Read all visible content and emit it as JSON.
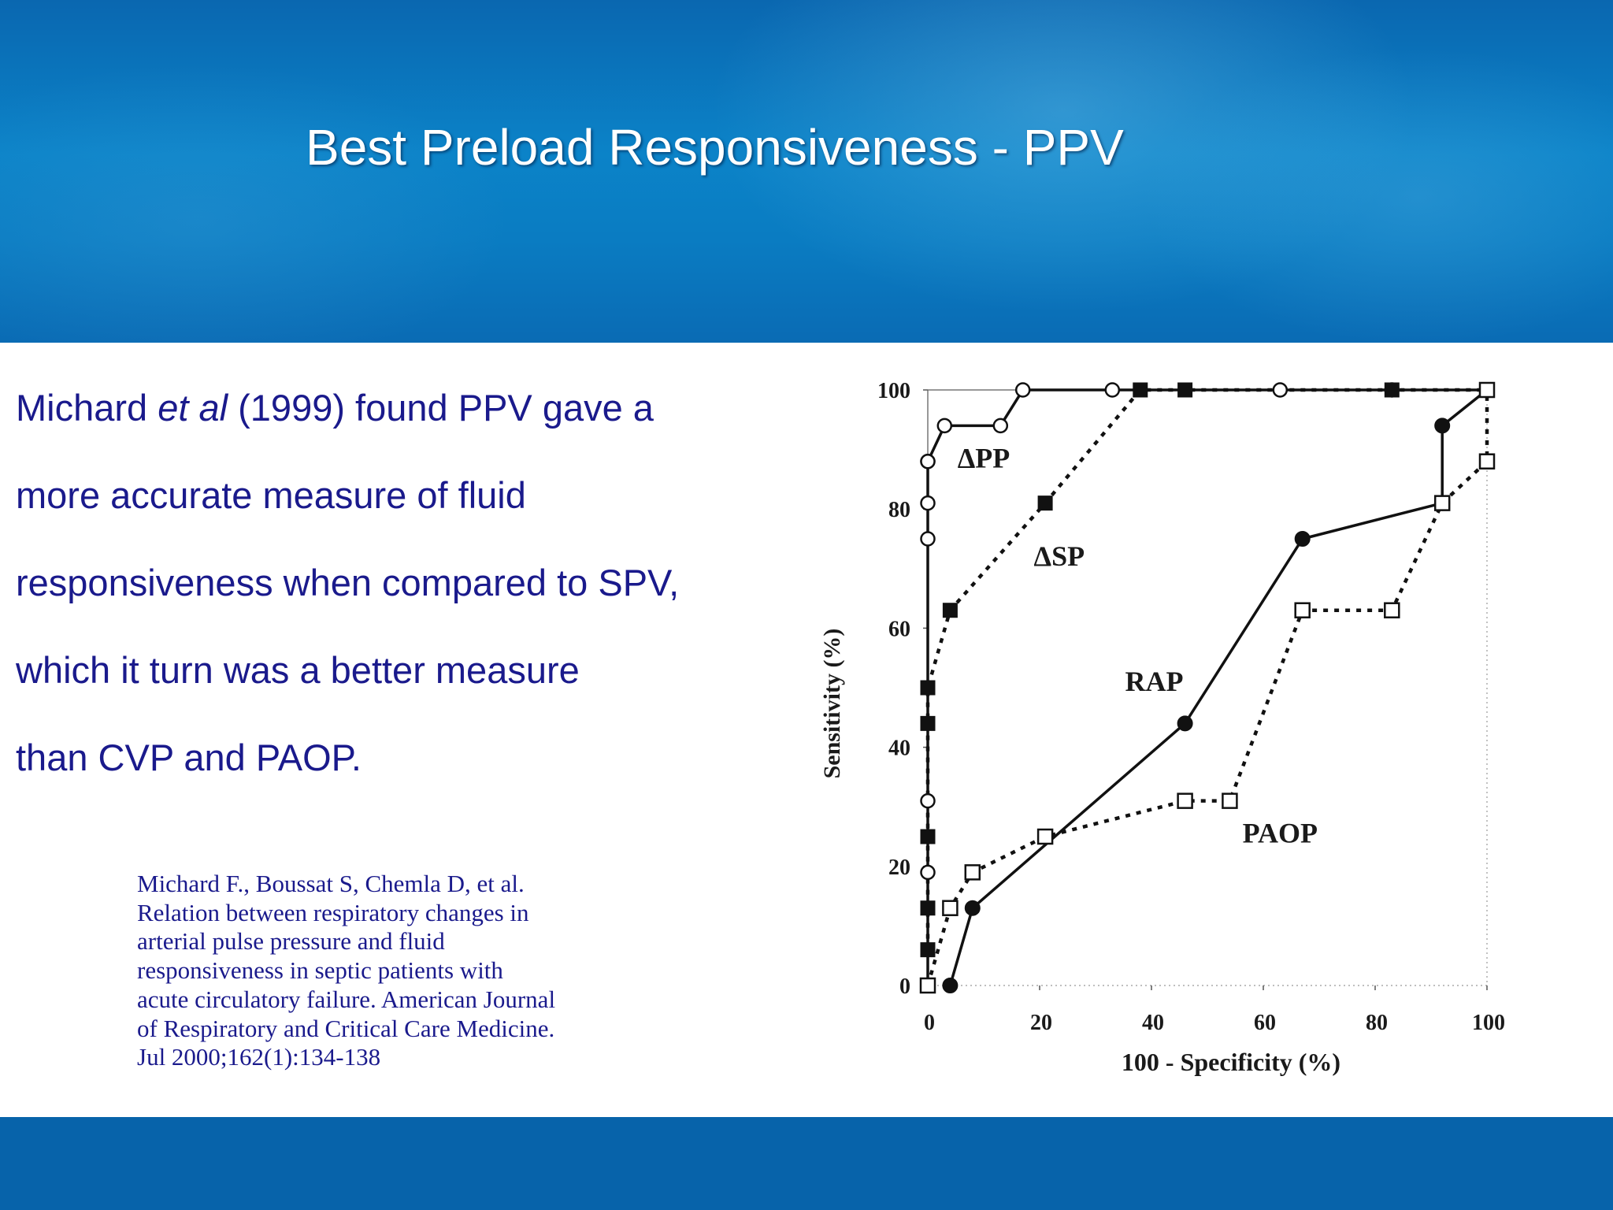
{
  "slide": {
    "title": "Best Preload Responsiveness - PPV",
    "body": {
      "line1_pre": "Michard ",
      "line1_italic": "et al",
      "line1_post": " (1999) found PPV gave a",
      "line2": "more accurate measure of fluid",
      "line3": "responsiveness when compared to SPV,",
      "line4": "which it turn was a better measure",
      "line5": "than CVP and PAOP."
    },
    "citation": [
      "Michard F., Boussat S, Chemla D, et al.",
      "Relation between respiratory changes in",
      "arterial pulse pressure and fluid",
      "responsiveness in septic patients with",
      "acute circulatory failure. American Journal",
      "of Respiratory and Critical Care Medicine.",
      "Jul 2000;162(1):134-138"
    ],
    "colors": {
      "header_blue": "#0a7cc2",
      "footer_blue": "#0763aa",
      "text_navy": "#1a1a8c"
    }
  },
  "chart_data": {
    "type": "line",
    "xlabel": "100 - Specificity (%)",
    "ylabel": "Sensitivity (%)",
    "xlim": [
      0,
      100
    ],
    "ylim": [
      0,
      100
    ],
    "xticks": [
      "0",
      "20",
      "40",
      "60",
      "80",
      "100"
    ],
    "yticks": [
      "0",
      "20",
      "40",
      "60",
      "80",
      "100"
    ],
    "grid": false,
    "series": [
      {
        "name": "ΔPP",
        "marker": "open-circle",
        "line": "solid",
        "x": [
          0,
          0,
          0,
          0,
          0,
          0,
          0,
          3,
          13,
          17,
          33,
          63,
          83,
          100
        ],
        "y": [
          0,
          19,
          31,
          75,
          81,
          88,
          88,
          94,
          94,
          100,
          100,
          100,
          100,
          100
        ]
      },
      {
        "name": "ΔSP",
        "marker": "filled-square",
        "line": "dotted",
        "x": [
          0,
          0,
          0,
          0,
          0,
          0,
          4,
          21,
          38,
          46,
          83,
          100
        ],
        "y": [
          6,
          13,
          25,
          44,
          50,
          50,
          63,
          81,
          100,
          100,
          100,
          100
        ]
      },
      {
        "name": "RAP",
        "marker": "filled-circle",
        "line": "solid",
        "x": [
          4,
          8,
          46,
          67,
          92,
          92,
          100
        ],
        "y": [
          0,
          13,
          44,
          75,
          81,
          94,
          100
        ]
      },
      {
        "name": "PAOP",
        "marker": "open-square",
        "line": "dotted",
        "x": [
          0,
          4,
          8,
          21,
          46,
          54,
          67,
          83,
          92,
          100,
          100
        ],
        "y": [
          0,
          13,
          19,
          25,
          31,
          31,
          63,
          63,
          81,
          88,
          100
        ]
      }
    ],
    "annotations": [
      {
        "text": "ΔPP",
        "x": 10,
        "y": 87
      },
      {
        "text": "ΔSP",
        "x": 23.5,
        "y": 70.5
      },
      {
        "text": "RAP",
        "x": 40.5,
        "y": 49.5
      },
      {
        "text": "PAOP",
        "x": 63,
        "y": 24
      }
    ]
  }
}
